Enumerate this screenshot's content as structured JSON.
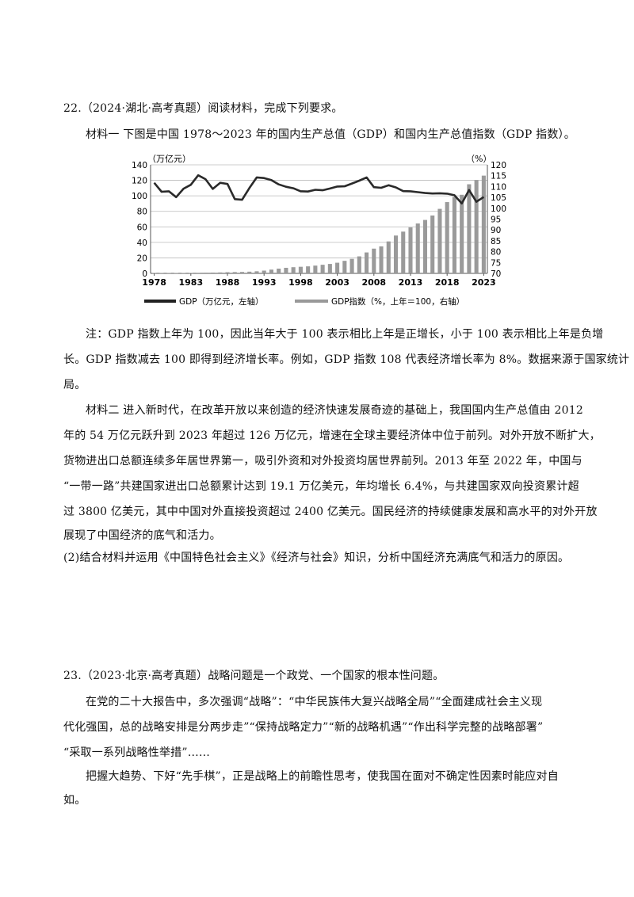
{
  "q22": {
    "header": "22.（2024·湖北·高考真题）阅读材料，完成下列要求。",
    "material1_intro": "材料一  下图是中国 1978～2023 年的国内生产总值（GDP）和国内生产总值指数（GDP 指数）。",
    "note_lines": [
      "注：GDP 指数上年为 100，因此当年大于 100 表示相比上年是正增长，小于 100 表示相比上年是负增",
      "长。GDP 指数减去 100 即得到经济增长率。例如，GDP 指数 108 代表经济增长率为 8%。数据来源于国家统计",
      "局。"
    ],
    "material2_lines": [
      "材料二  进入新时代，在改革开放以来创造的经济快速发展奇迹的基础上，我国国内生产总值由 2012",
      "年的 54 万亿元跃升到 2023 年超过 126 万亿元，增速在全球主要经济体中位于前列。对外开放不断扩大，",
      "货物进出口总额连续多年居世界第一，吸引外资和对外投资均居世界前列。2013 年至 2022 年，中国与",
      "“一带一路”共建国家进出口总额累计达到 19.1 万亿美元，年均增长 6.4%，与共建国家双向投资累计超",
      "过 3800 亿美元，其中中国对外直接投资超过 2400 亿美元。国民经济的持续健康发展和高水平的对外开放",
      "展现了中国经济的底气和活力。"
    ],
    "question": "(2)结合材料并运用《中国特色社会主义》《经济与社会》知识，分析中国经济充满底气和活力的原因。"
  },
  "q23": {
    "header": "23.（2023·北京·高考真题）战略问题是一个政党、一个国家的根本性问题。",
    "para1_lines": [
      "在党的二十大报告中，多次强调“战略”：“中华民族伟大复兴战略全局”“全面建成社会主义现",
      "代化强国，总的战略安排是分两步走”“保持战略定力”“新的战略机遇”“作出科学完整的战略部署”",
      "“采取一系列战略性举措”……"
    ],
    "para2_lines": [
      "把握大趋势、下好“先手棋”，正是战略上的前瞻性思考，使我国在面对不确定性因素时能应对自",
      "如。"
    ]
  },
  "chart_data": {
    "type": "bar+line",
    "left_unit": "（万亿元）",
    "right_unit": "（%）",
    "left_ylim": [
      0,
      140
    ],
    "right_ylim": [
      70,
      120
    ],
    "left_ticks": [
      "0",
      "20",
      "40",
      "60",
      "80",
      "100",
      "120",
      "140"
    ],
    "right_ticks": [
      "70",
      "75",
      "80",
      "85",
      "90",
      "95",
      "100",
      "105",
      "110",
      "115",
      "120"
    ],
    "x_ticks": [
      "1978",
      "1983",
      "1988",
      "1993",
      "1998",
      "2003",
      "2008",
      "2013",
      "2018",
      "2023"
    ],
    "legend": {
      "gdp": "GDP（万亿元，左轴）",
      "index": "GDP指数（%，上年＝100，右轴）"
    },
    "years": [
      1978,
      1979,
      1980,
      1981,
      1982,
      1983,
      1984,
      1985,
      1986,
      1987,
      1988,
      1989,
      1990,
      1991,
      1992,
      1993,
      1994,
      1995,
      1996,
      1997,
      1998,
      1999,
      2000,
      2001,
      2002,
      2003,
      2004,
      2005,
      2006,
      2007,
      2008,
      2009,
      2010,
      2011,
      2012,
      2013,
      2014,
      2015,
      2016,
      2017,
      2018,
      2019,
      2020,
      2021,
      2022,
      2023
    ],
    "gdp": [
      0.37,
      0.41,
      0.46,
      0.49,
      0.54,
      0.6,
      0.72,
      0.9,
      1.03,
      1.21,
      1.5,
      1.7,
      1.87,
      2.19,
      2.7,
      3.57,
      4.86,
      6.13,
      7.18,
      7.97,
      8.52,
      9.06,
      10.03,
      11.09,
      12.17,
      13.74,
      16.18,
      18.73,
      21.94,
      27.01,
      31.92,
      34.85,
      41.21,
      48.79,
      53.86,
      59.3,
      64.36,
      68.89,
      74.64,
      83.2,
      91.93,
      98.65,
      101.36,
      114.92,
      120.47,
      126.06
    ],
    "index": [
      111.7,
      107.6,
      107.8,
      105.1,
      109.0,
      110.8,
      115.2,
      113.4,
      108.9,
      111.7,
      111.2,
      104.2,
      103.9,
      109.3,
      114.2,
      113.9,
      113.0,
      111.0,
      109.9,
      109.2,
      107.8,
      107.7,
      108.5,
      108.3,
      109.1,
      110.0,
      110.1,
      111.4,
      112.7,
      114.2,
      109.7,
      109.4,
      110.6,
      109.6,
      107.9,
      107.8,
      107.4,
      107.0,
      106.8,
      106.9,
      106.7,
      106.0,
      102.2,
      108.4,
      103.0,
      105.2
    ]
  }
}
